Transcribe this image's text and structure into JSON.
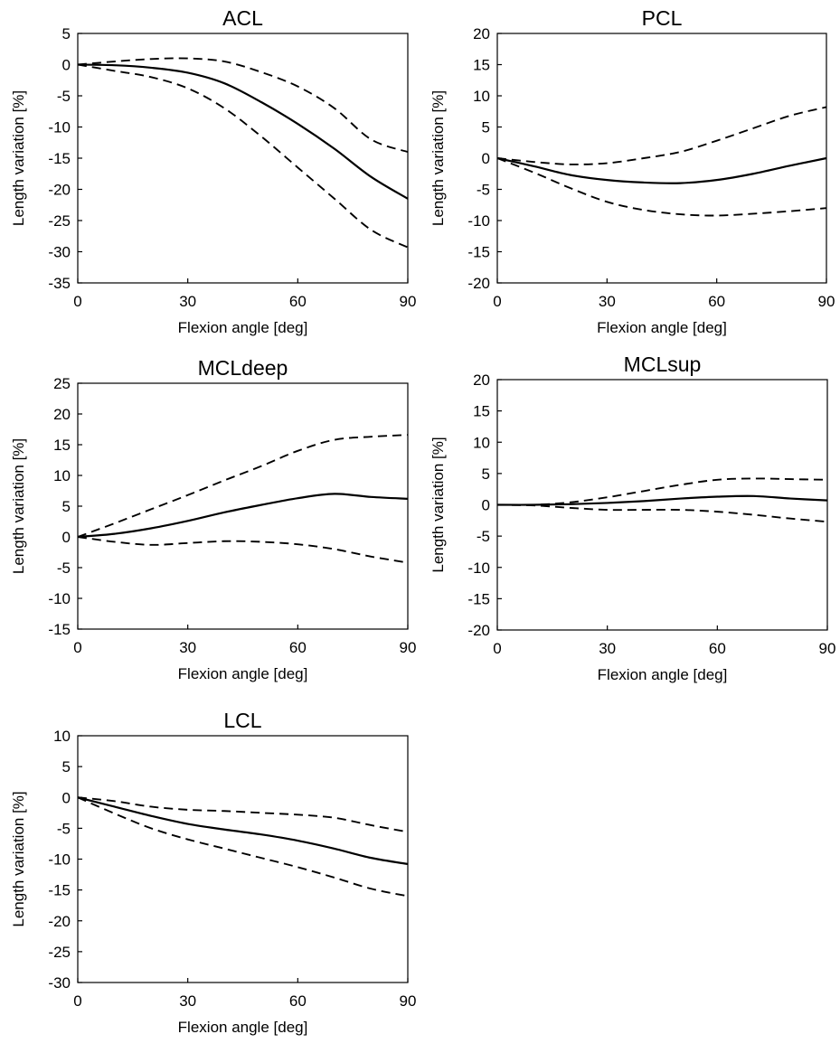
{
  "chart_data": [
    {
      "type": "line",
      "title": "ACL",
      "xlabel": "Flexion angle [deg]",
      "ylabel": "Length variation [%]",
      "xlim": [
        0,
        90
      ],
      "ylim": [
        -35,
        5
      ],
      "xticks": [
        0,
        30,
        60,
        90
      ],
      "yticks": [
        5,
        0,
        -5,
        -10,
        -15,
        -20,
        -25,
        -30,
        -35
      ],
      "x": [
        0,
        10,
        20,
        30,
        40,
        50,
        60,
        70,
        80,
        90
      ],
      "series": [
        {
          "style": "solid",
          "values": [
            0,
            -0.1,
            -0.5,
            -1.3,
            -3.0,
            -6.0,
            -9.5,
            -13.5,
            -18.0,
            -21.5
          ]
        },
        {
          "style": "dashed",
          "values": [
            0,
            0.5,
            0.9,
            1.0,
            0.5,
            -1.2,
            -3.5,
            -7.0,
            -12.0,
            -14.0
          ]
        },
        {
          "style": "dashed",
          "values": [
            0,
            -1.0,
            -2.0,
            -3.8,
            -7.0,
            -11.5,
            -16.5,
            -21.5,
            -26.5,
            -29.3
          ]
        }
      ]
    },
    {
      "type": "line",
      "title": "PCL",
      "xlabel": "Flexion angle [deg]",
      "ylabel": "Length variation [%]",
      "xlim": [
        0,
        90
      ],
      "ylim": [
        -20,
        20
      ],
      "xticks": [
        0,
        30,
        60,
        90
      ],
      "yticks": [
        20,
        15,
        10,
        5,
        0,
        -5,
        -10,
        -15,
        -20
      ],
      "x": [
        0,
        10,
        20,
        30,
        40,
        50,
        60,
        70,
        80,
        90
      ],
      "series": [
        {
          "style": "solid",
          "values": [
            0,
            -1.3,
            -2.7,
            -3.5,
            -3.9,
            -4.0,
            -3.5,
            -2.5,
            -1.2,
            0
          ]
        },
        {
          "style": "dashed",
          "values": [
            0,
            -0.6,
            -1.0,
            -0.8,
            0,
            1.0,
            2.8,
            4.8,
            6.8,
            8.2
          ]
        },
        {
          "style": "dashed",
          "values": [
            0,
            -2.3,
            -4.8,
            -7.0,
            -8.3,
            -9.0,
            -9.2,
            -8.9,
            -8.5,
            -8.0
          ]
        }
      ]
    },
    {
      "type": "line",
      "title": "MCLdeep",
      "xlabel": "Flexion angle [deg]",
      "ylabel": "Length variation [%]",
      "xlim": [
        0,
        90
      ],
      "ylim": [
        -15,
        25
      ],
      "xticks": [
        0,
        30,
        60,
        90
      ],
      "yticks": [
        25,
        20,
        15,
        10,
        5,
        0,
        -5,
        -10,
        -15
      ],
      "x": [
        0,
        10,
        20,
        30,
        40,
        50,
        60,
        70,
        80,
        90
      ],
      "series": [
        {
          "style": "solid",
          "values": [
            0,
            0.5,
            1.4,
            2.6,
            4.0,
            5.2,
            6.3,
            7.0,
            6.5,
            6.2
          ]
        },
        {
          "style": "dashed",
          "values": [
            0,
            2.2,
            4.5,
            6.8,
            9.2,
            11.5,
            14.0,
            15.8,
            16.3,
            16.6
          ]
        },
        {
          "style": "dashed",
          "values": [
            0,
            -0.8,
            -1.3,
            -1.0,
            -0.7,
            -0.8,
            -1.2,
            -2.0,
            -3.2,
            -4.2
          ]
        }
      ]
    },
    {
      "type": "line",
      "title": "MCLsup",
      "xlabel": "Flexion angle [deg]",
      "ylabel": "Length variation [%]",
      "xlim": [
        0,
        90
      ],
      "ylim": [
        -20,
        20
      ],
      "xticks": [
        0,
        30,
        60,
        90
      ],
      "yticks": [
        20,
        15,
        10,
        5,
        0,
        -5,
        -10,
        -15,
        -20
      ],
      "x": [
        0,
        10,
        20,
        30,
        40,
        50,
        60,
        70,
        80,
        90
      ],
      "series": [
        {
          "style": "solid",
          "values": [
            0,
            0,
            0.1,
            0.3,
            0.6,
            1.0,
            1.3,
            1.4,
            1.0,
            0.7
          ]
        },
        {
          "style": "dashed",
          "values": [
            0,
            0,
            0.4,
            1.2,
            2.2,
            3.2,
            4.0,
            4.2,
            4.1,
            4.0
          ]
        },
        {
          "style": "dashed",
          "values": [
            0,
            -0.1,
            -0.5,
            -0.8,
            -0.8,
            -0.8,
            -1.1,
            -1.6,
            -2.2,
            -2.7
          ]
        }
      ]
    },
    {
      "type": "line",
      "title": "LCL",
      "xlabel": "Flexion angle [deg]",
      "ylabel": "Length variation [%]",
      "xlim": [
        0,
        90
      ],
      "ylim": [
        -30,
        10
      ],
      "xticks": [
        0,
        30,
        60,
        90
      ],
      "yticks": [
        10,
        5,
        0,
        -5,
        -10,
        -15,
        -20,
        -25,
        -30
      ],
      "x": [
        0,
        10,
        20,
        30,
        40,
        50,
        60,
        70,
        80,
        90
      ],
      "series": [
        {
          "style": "solid",
          "values": [
            0,
            -1.5,
            -3.0,
            -4.3,
            -5.2,
            -6.0,
            -7.0,
            -8.3,
            -9.8,
            -10.8
          ]
        },
        {
          "style": "dashed",
          "values": [
            0,
            -0.6,
            -1.5,
            -2.0,
            -2.2,
            -2.5,
            -2.8,
            -3.3,
            -4.5,
            -5.6
          ]
        },
        {
          "style": "dashed",
          "values": [
            0,
            -2.6,
            -5.0,
            -6.8,
            -8.3,
            -9.8,
            -11.3,
            -13.0,
            -14.8,
            -16.0
          ]
        }
      ]
    }
  ]
}
